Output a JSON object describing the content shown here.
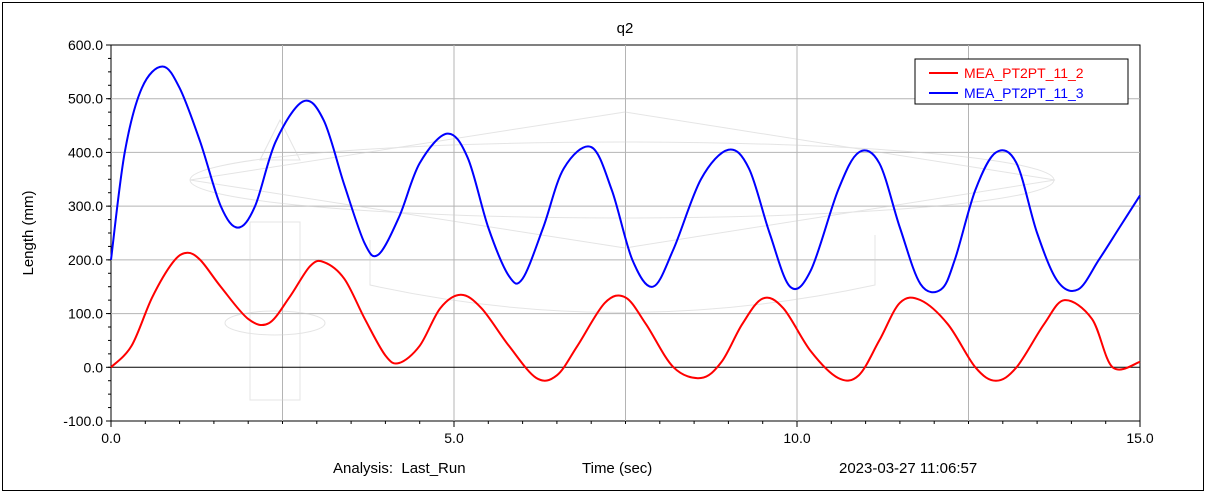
{
  "chart_data": {
    "type": "line",
    "title": "q2",
    "xlabel": "Time (sec)",
    "ylabel": "Length (mm)",
    "xlim": [
      0,
      15
    ],
    "ylim": [
      -100,
      600
    ],
    "x_ticks": [
      "0.0",
      "5.0",
      "10.0",
      "15.0"
    ],
    "y_ticks": [
      "-100.0",
      "0.0",
      "100.0",
      "200.0",
      "300.0",
      "400.0",
      "500.0",
      "600.0"
    ],
    "grid": true,
    "legend_position": "top-right",
    "series": [
      {
        "name": "MEA_PT2PT_11_2",
        "color": "#ff0000",
        "x": [
          0,
          0.3,
          0.6,
          0.9,
          1.1,
          1.3,
          1.6,
          2.0,
          2.3,
          2.6,
          2.9,
          3.1,
          3.4,
          3.7,
          4.0,
          4.2,
          4.5,
          4.8,
          5.1,
          5.4,
          5.8,
          6.2,
          6.5,
          6.8,
          7.2,
          7.5,
          7.8,
          8.2,
          8.6,
          8.9,
          9.2,
          9.5,
          9.8,
          10.2,
          10.6,
          10.9,
          11.2,
          11.5,
          11.8,
          12.2,
          12.6,
          12.9,
          13.2,
          13.6,
          13.9,
          14.3,
          14.6,
          15.0
        ],
        "values": [
          0,
          40,
          130,
          195,
          213,
          200,
          150,
          90,
          82,
          130,
          188,
          196,
          165,
          90,
          22,
          8,
          40,
          110,
          135,
          110,
          40,
          -20,
          -15,
          40,
          120,
          130,
          80,
          0,
          -20,
          10,
          80,
          128,
          110,
          30,
          -20,
          -15,
          50,
          120,
          125,
          80,
          0,
          -25,
          0,
          80,
          125,
          90,
          0,
          10
        ]
      },
      {
        "name": "MEA_PT2PT_11_3",
        "color": "#0000ff",
        "x": [
          0,
          0.2,
          0.45,
          0.75,
          1.0,
          1.3,
          1.6,
          1.85,
          2.1,
          2.4,
          2.8,
          3.1,
          3.4,
          3.7,
          3.9,
          4.2,
          4.5,
          4.9,
          5.2,
          5.5,
          5.8,
          6.0,
          6.3,
          6.6,
          7.0,
          7.3,
          7.6,
          7.9,
          8.2,
          8.6,
          9.0,
          9.3,
          9.6,
          9.9,
          10.2,
          10.6,
          10.9,
          11.2,
          11.5,
          11.8,
          12.1,
          12.3,
          12.6,
          12.9,
          13.2,
          13.5,
          13.8,
          14.1,
          14.4,
          14.7,
          15.0
        ],
        "values": [
          200,
          400,
          520,
          560,
          520,
          420,
          300,
          260,
          300,
          420,
          495,
          460,
          340,
          230,
          210,
          280,
          380,
          435,
          390,
          260,
          170,
          165,
          260,
          370,
          410,
          330,
          200,
          150,
          220,
          350,
          405,
          370,
          250,
          150,
          180,
          330,
          400,
          380,
          260,
          155,
          145,
          200,
          330,
          400,
          380,
          250,
          160,
          145,
          200,
          260,
          320
        ]
      }
    ]
  },
  "footer": {
    "analysis": "Analysis:  Last_Run",
    "xlabel": "Time (sec)",
    "timestamp": "2023-03-27 11:06:57"
  }
}
